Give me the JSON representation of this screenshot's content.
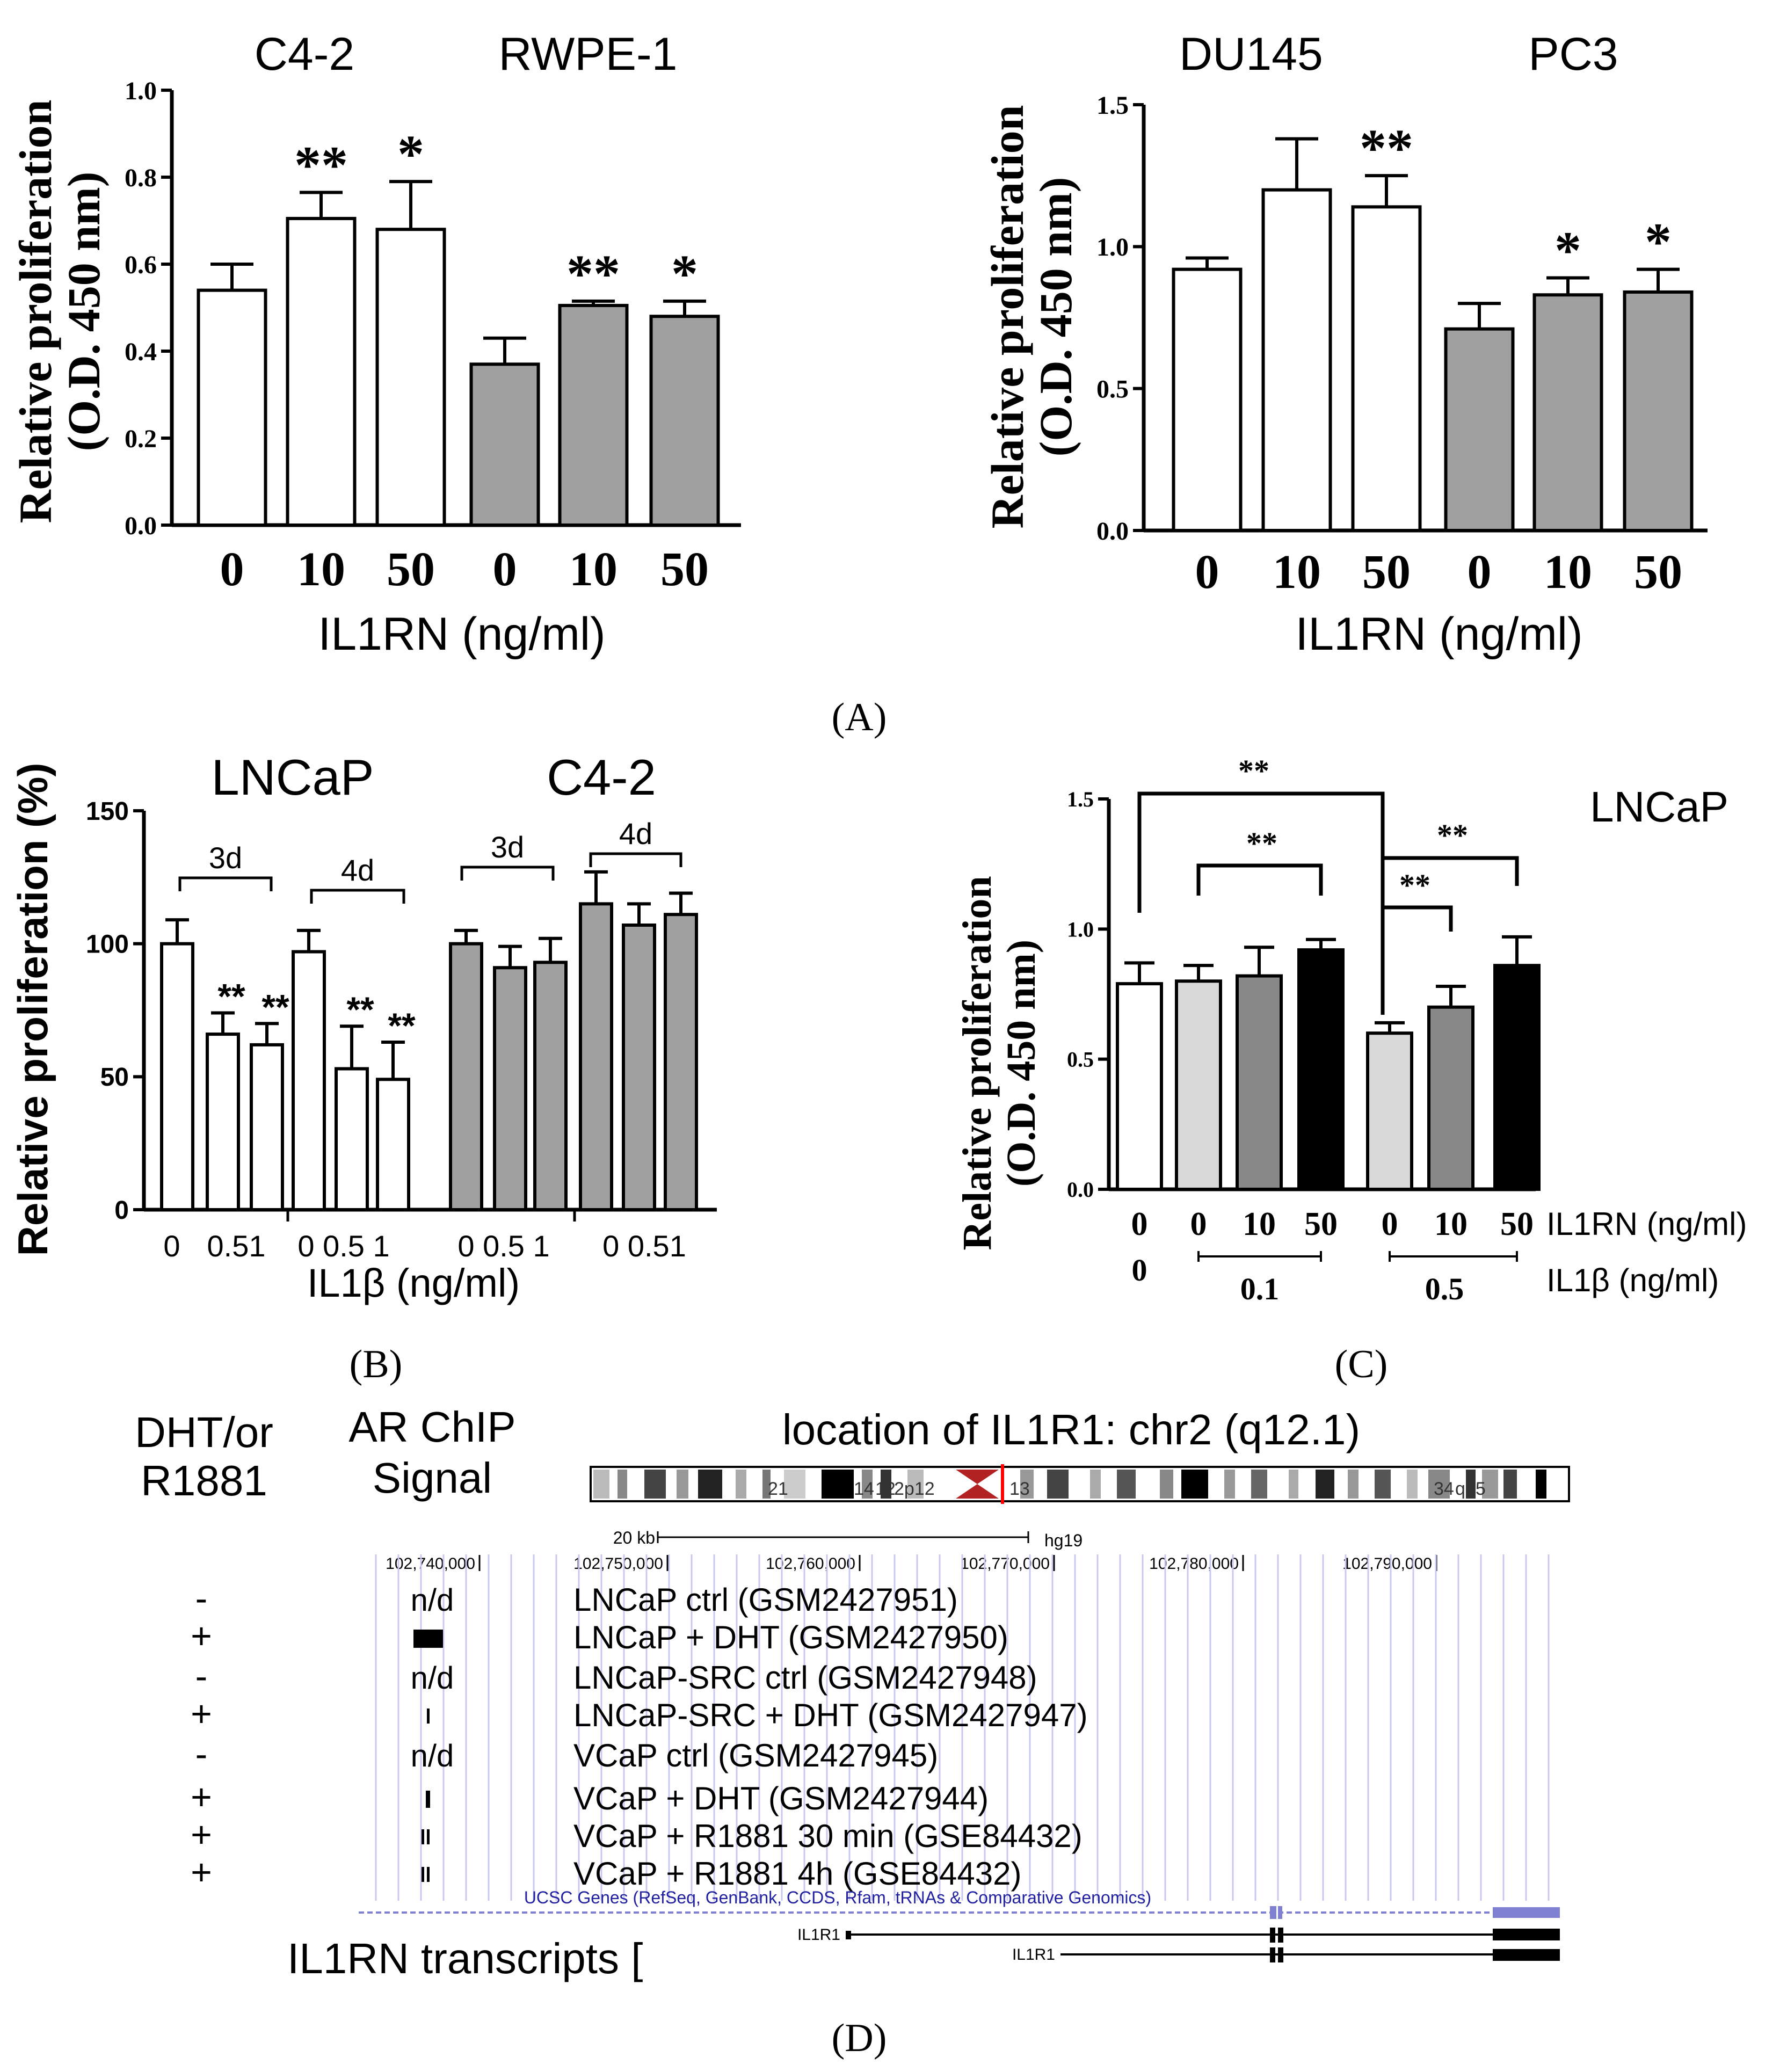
{
  "panel_labels": {
    "A": "(A)",
    "B": "(B)",
    "C": "(C)",
    "D": "(D)"
  },
  "colors": {
    "control": "#ffffff",
    "gray": "#a0a0a0",
    "light": "#d9d9d9",
    "mid": "#888888",
    "dark": "#000000"
  },
  "chart_data": [
    {
      "id": "A-left",
      "type": "bar",
      "group_labels": [
        "C4-2",
        "RWPE-1"
      ],
      "categories": [
        "0",
        "10",
        "50",
        "0",
        "10",
        "50"
      ],
      "values": [
        0.54,
        0.705,
        0.68,
        0.37,
        0.505,
        0.48
      ],
      "errors": [
        0.06,
        0.06,
        0.11,
        0.06,
        0.01,
        0.035
      ],
      "fills": [
        "control",
        "control",
        "control",
        "gray",
        "gray",
        "gray"
      ],
      "significance": [
        "",
        "**",
        "*",
        "",
        "**",
        "*"
      ],
      "yticks": [
        "0.0",
        "0.2",
        "0.4",
        "0.6",
        "0.8",
        "1.0"
      ],
      "ylim": [
        0,
        1.0
      ],
      "xlabel": "IL1RN (ng/ml)",
      "ylabel": [
        "Relative proliferation",
        "(O.D. 450 nm)"
      ]
    },
    {
      "id": "A-right",
      "type": "bar",
      "group_labels": [
        "DU145",
        "PC3"
      ],
      "categories": [
        "0",
        "10",
        "50",
        "0",
        "10",
        "50"
      ],
      "values": [
        0.92,
        1.2,
        1.14,
        0.71,
        0.83,
        0.84
      ],
      "errors": [
        0.04,
        0.18,
        0.11,
        0.09,
        0.06,
        0.08
      ],
      "fills": [
        "control",
        "control",
        "control",
        "gray",
        "gray",
        "gray"
      ],
      "significance": [
        "",
        "",
        "**",
        "",
        "*",
        "*"
      ],
      "yticks": [
        "0.0",
        "0.5",
        "1.0",
        "1.5"
      ],
      "ylim": [
        0,
        1.5
      ],
      "xlabel": "IL1RN (ng/ml)",
      "ylabel": [
        "Relative proliferation",
        "(O.D. 450 nm)"
      ]
    },
    {
      "id": "B",
      "type": "bar",
      "group_labels": [
        "LNCaP",
        "C4-2"
      ],
      "time_labels": [
        "3d",
        "4d",
        "3d",
        "4d"
      ],
      "categories": [
        "0",
        "0.5",
        "1",
        "0",
        "0.5",
        "1",
        "0",
        "0.5",
        "1",
        "0",
        "0.5",
        "1"
      ],
      "tick_labels": [
        "0",
        "0.51",
        "0 0.5 1",
        "0 0.5 1",
        "0 0.51"
      ],
      "values": [
        100,
        66,
        62,
        97,
        53,
        49,
        100,
        91,
        93,
        115,
        107,
        111
      ],
      "errors": [
        9,
        8,
        8,
        8,
        16,
        14,
        5,
        8,
        9,
        12,
        8,
        8
      ],
      "fills": [
        "control",
        "control",
        "control",
        "control",
        "control",
        "control",
        "gray",
        "gray",
        "gray",
        "gray",
        "gray",
        "gray"
      ],
      "significance": [
        "",
        "**",
        "**",
        "",
        "**",
        "**",
        "",
        "",
        "",
        "",
        "",
        ""
      ],
      "yticks": [
        "0",
        "50",
        "100",
        "150"
      ],
      "ylim": [
        0,
        150
      ],
      "xlabel": "IL1β (ng/ml)",
      "ylabel": "Relative proliferation (%)"
    },
    {
      "id": "C",
      "type": "bar",
      "cell_label": "LNCaP",
      "categories": [
        "0",
        "0",
        "10",
        "50",
        "0",
        "10",
        "50"
      ],
      "il1b_labels": [
        "0",
        "0.1",
        "0.5"
      ],
      "values": [
        0.79,
        0.8,
        0.82,
        0.92,
        0.6,
        0.7,
        0.86
      ],
      "errors": [
        0.08,
        0.06,
        0.11,
        0.04,
        0.04,
        0.08,
        0.11
      ],
      "fills": [
        "control",
        "light",
        "mid",
        "dark",
        "light",
        "mid",
        "dark"
      ],
      "brackets": [
        "**",
        "**",
        "**",
        "**"
      ],
      "yticks": [
        "0.0",
        "0.5",
        "1.0",
        "1.5"
      ],
      "ylim": [
        0,
        1.5
      ],
      "row_labels": [
        "IL1RN (ng/ml)",
        "IL1β (ng/ml)"
      ],
      "ylabel": [
        "Relative proliferation",
        "(O.D. 450 nm)"
      ]
    }
  ],
  "genome": {
    "headers": {
      "treatment": [
        "DHT/or",
        "R1881"
      ],
      "signal": [
        "AR ChIP",
        "Signal"
      ]
    },
    "location_title": "location of IL1R1: chr2 (q12.1)",
    "band_labels": [
      "21",
      "14",
      "12",
      "2p12",
      "13",
      "34",
      "q35"
    ],
    "scale_label": "20 kb",
    "assembly": "hg19",
    "coords": [
      "102,740,000",
      "102,750,000",
      "102,760,000",
      "102,770,000",
      "102,780,000",
      "102,790,000"
    ],
    "tracks": [
      {
        "treatment": "-",
        "signal": "n/d",
        "label": "LNCaP ctrl (GSM2427951)",
        "peak": "none"
      },
      {
        "treatment": "+",
        "signal": "",
        "label": "LNCaP + DHT (GSM2427950)",
        "peak": "block"
      },
      {
        "treatment": "-",
        "signal": "n/d",
        "label": "LNCaP-SRC ctrl (GSM2427948)",
        "peak": "none"
      },
      {
        "treatment": "+",
        "signal": "",
        "label": "LNCaP-SRC + DHT (GSM2427947)",
        "peak": "thin"
      },
      {
        "treatment": "-",
        "signal": "n/d",
        "label": "VCaP ctrl (GSM2427945)",
        "peak": "none"
      },
      {
        "treatment": "+",
        "signal": "",
        "label": "VCaP + DHT (GSM2427944)",
        "peak": "bar"
      },
      {
        "treatment": "+",
        "signal": "",
        "label": "VCaP + R1881 30 min (GSE84432)",
        "peak": "double"
      },
      {
        "treatment": "+",
        "signal": "",
        "label": "VCaP + R1881 4h (GSE84432)",
        "peak": "double"
      }
    ],
    "ucsc_label": "UCSC Genes (RefSeq, GenBank, CCDS, Rfam, tRNAs & Comparative Genomics)",
    "transcripts": [
      "IL1R1",
      "IL1R1"
    ],
    "il1rn_label": "IL1RN transcripts ["
  }
}
